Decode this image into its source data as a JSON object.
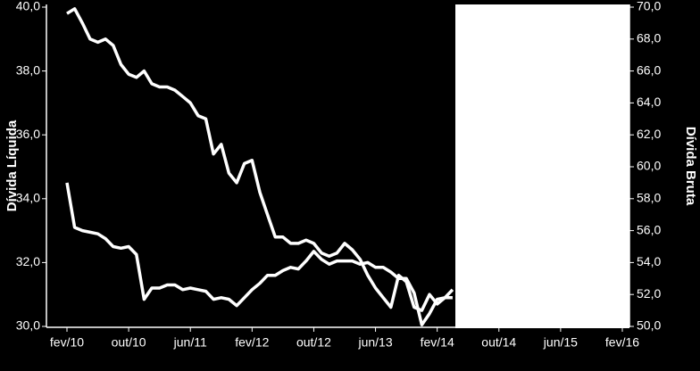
{
  "chart_data": {
    "type": "line",
    "ylabel": "Dívida Líquida",
    "y2label": "Dívida Bruta",
    "categories": [
      "fev/10",
      null,
      null,
      null,
      null,
      null,
      null,
      null,
      "out/10",
      null,
      null,
      null,
      null,
      null,
      null,
      null,
      "jun/11",
      null,
      null,
      null,
      null,
      null,
      null,
      null,
      "fev/12",
      null,
      null,
      null,
      null,
      null,
      null,
      null,
      "out/12",
      null,
      null,
      null,
      null,
      null,
      null,
      null,
      "jun/13",
      null,
      null,
      null,
      null,
      null,
      null,
      null,
      "fev/14",
      null,
      null,
      null,
      null,
      null,
      null,
      null,
      "out/14",
      null,
      null,
      null,
      null,
      null,
      null,
      null,
      "jun/15",
      null,
      null,
      null,
      null,
      null,
      null,
      null,
      "fev/16"
    ],
    "series": [
      {
        "color": "#ffffff",
        "axis": "y",
        "values": [
          39.8,
          39.95,
          39.5,
          39.0,
          38.9,
          39.0,
          38.8,
          38.2,
          37.9,
          37.8,
          38.0,
          37.6,
          37.5,
          37.5,
          37.4,
          37.2,
          37.0,
          36.6,
          36.5,
          35.4,
          35.7,
          34.8,
          34.5,
          35.1,
          35.2,
          34.2,
          33.5,
          32.8,
          32.8,
          32.6,
          32.6,
          32.7,
          32.6,
          32.3,
          32.2,
          32.3,
          32.6,
          32.4,
          32.1,
          31.6,
          31.2,
          30.9,
          30.6,
          31.6,
          31.4,
          30.6,
          30.5,
          31.0,
          30.7,
          30.9,
          30.9,
          null,
          null,
          null,
          null,
          null,
          null,
          null,
          null,
          null,
          null,
          null,
          null,
          null,
          null,
          null,
          null,
          null,
          null,
          null,
          null,
          null,
          null
        ]
      },
      {
        "color": "#ffffff",
        "axis": "y2",
        "values": [
          59.0,
          56.2,
          56.0,
          55.9,
          55.8,
          55.5,
          55.0,
          54.9,
          55.0,
          54.5,
          51.7,
          52.4,
          52.4,
          52.6,
          52.6,
          52.3,
          52.4,
          52.3,
          52.2,
          51.7,
          51.8,
          51.7,
          51.3,
          51.8,
          52.3,
          52.7,
          53.2,
          53.2,
          53.5,
          53.7,
          53.6,
          54.1,
          54.7,
          54.2,
          53.9,
          54.1,
          54.1,
          54.1,
          53.9,
          54.0,
          53.7,
          53.7,
          53.4,
          53.0,
          53.0,
          52.1,
          50.1,
          50.8,
          51.7,
          51.8,
          52.3,
          null,
          null,
          null,
          null,
          null,
          null,
          null,
          null,
          null,
          null,
          null,
          null,
          null,
          null,
          null,
          null,
          null,
          null,
          null,
          null,
          null,
          null
        ]
      }
    ],
    "ylim": [
      30,
      40
    ],
    "yticks": [
      {
        "value": 30,
        "label": "30,0"
      },
      {
        "value": 32,
        "label": "32,0"
      },
      {
        "value": 34,
        "label": "34,0"
      },
      {
        "value": 36,
        "label": "36,0"
      },
      {
        "value": 38,
        "label": "38,0"
      },
      {
        "value": 40,
        "label": "40,0"
      }
    ],
    "y2lim": [
      50,
      70
    ],
    "y2ticks": [
      {
        "value": 50,
        "label": "50,0"
      },
      {
        "value": 52,
        "label": "52,0"
      },
      {
        "value": 54,
        "label": "54,0"
      },
      {
        "value": 56,
        "label": "56,0"
      },
      {
        "value": 58,
        "label": "58,0"
      },
      {
        "value": 60,
        "label": "60,0"
      },
      {
        "value": 62,
        "label": "62,0"
      },
      {
        "value": 64,
        "label": "64,0"
      },
      {
        "value": 66,
        "label": "66,0"
      },
      {
        "value": 68,
        "label": "68,0"
      },
      {
        "value": 70,
        "label": "70,0"
      }
    ]
  }
}
